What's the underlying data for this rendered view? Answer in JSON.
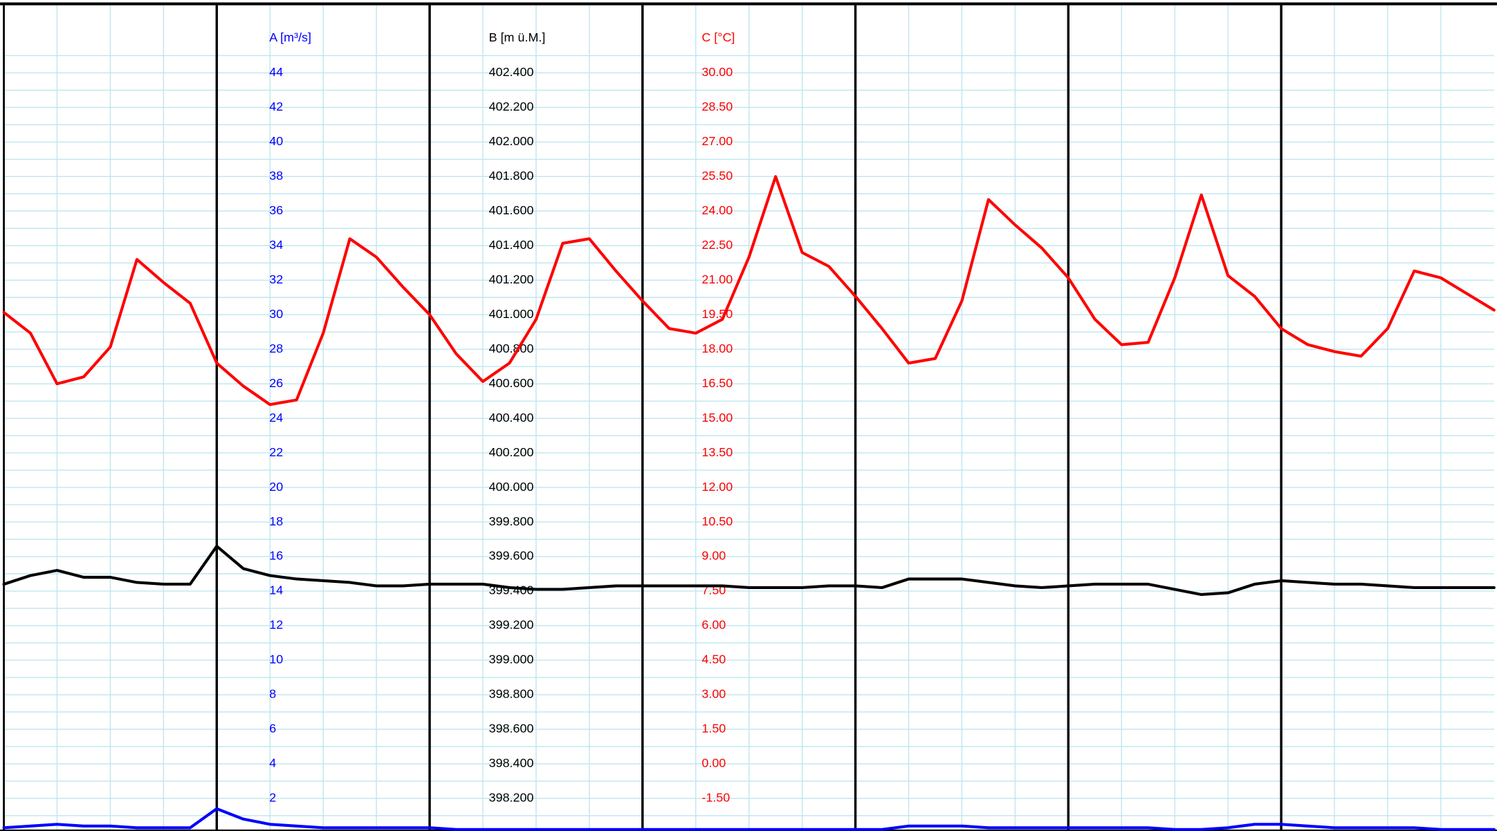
{
  "chart_data": {
    "type": "line",
    "grid": true,
    "axes": [
      {
        "label": "A [m³/s]",
        "color": "#0000ff",
        "ylim": [
          0,
          48
        ],
        "yticks": [
          2,
          4,
          6,
          8,
          10,
          12,
          14,
          16,
          18,
          20,
          22,
          24,
          26,
          28,
          30,
          32,
          34,
          36,
          38,
          40,
          42,
          44
        ]
      },
      {
        "label": "B [m ü.M.]",
        "color": "#000000",
        "ylim": [
          398.0,
          402.8
        ],
        "yticks": [
          {
            "value": 398.2,
            "label": "398.200"
          },
          {
            "value": 398.4,
            "label": "398.400"
          },
          {
            "value": 398.6,
            "label": "398.600"
          },
          {
            "value": 398.8,
            "label": "398.800"
          },
          {
            "value": 399.0,
            "label": "399.000"
          },
          {
            "value": 399.2,
            "label": "399.200"
          },
          {
            "value": 399.4,
            "label": "399.400"
          },
          {
            "value": 399.6,
            "label": "399.600"
          },
          {
            "value": 399.8,
            "label": "399.800"
          },
          {
            "value": 400.0,
            "label": "400.000"
          },
          {
            "value": 400.2,
            "label": "400.200"
          },
          {
            "value": 400.4,
            "label": "400.400"
          },
          {
            "value": 400.6,
            "label": "400.600"
          },
          {
            "value": 400.8,
            "label": "400.800"
          },
          {
            "value": 401.0,
            "label": "401.000"
          },
          {
            "value": 401.2,
            "label": "401.200"
          },
          {
            "value": 401.4,
            "label": "401.400"
          },
          {
            "value": 401.6,
            "label": "401.600"
          },
          {
            "value": 401.8,
            "label": "401.800"
          },
          {
            "value": 402.0,
            "label": "402.000"
          },
          {
            "value": 402.2,
            "label": "402.200"
          },
          {
            "value": 402.4,
            "label": "402.400"
          }
        ]
      },
      {
        "label": "C [°C]",
        "color": "#ff0000",
        "ylim": [
          -3,
          33
        ],
        "yticks": [
          {
            "value": -1.5,
            "label": "-1.50"
          },
          {
            "value": 0,
            "label": "0.00"
          },
          {
            "value": 1.5,
            "label": "1.50"
          },
          {
            "value": 3,
            "label": "3.00"
          },
          {
            "value": 4.5,
            "label": "4.50"
          },
          {
            "value": 6,
            "label": "6.00"
          },
          {
            "value": 7.5,
            "label": "7.50"
          },
          {
            "value": 9,
            "label": "9.00"
          },
          {
            "value": 10.5,
            "label": "10.50"
          },
          {
            "value": 12,
            "label": "12.00"
          },
          {
            "value": 13.5,
            "label": "13.50"
          },
          {
            "value": 15,
            "label": "15.00"
          },
          {
            "value": 16.5,
            "label": "16.50"
          },
          {
            "value": 18,
            "label": "18.00"
          },
          {
            "value": 19.5,
            "label": "19.50"
          },
          {
            "value": 21,
            "label": "21.00"
          },
          {
            "value": 22.5,
            "label": "22.50"
          },
          {
            "value": 24,
            "label": "24.00"
          },
          {
            "value": 25.5,
            "label": "25.50"
          },
          {
            "value": 27,
            "label": "27.00"
          },
          {
            "value": 28.5,
            "label": "28.50"
          },
          {
            "value": 30,
            "label": "30.00"
          }
        ]
      }
    ],
    "series": [
      {
        "axis": 0,
        "color": "#0000ff",
        "values": [
          0.3,
          0.4,
          0.5,
          0.4,
          0.4,
          0.3,
          0.3,
          0.3,
          1.4,
          0.8,
          0.5,
          0.4,
          0.3,
          0.3,
          0.3,
          0.3,
          0.3,
          0.2,
          0.2,
          0.2,
          0.2,
          0.2,
          0.2,
          0.2,
          0.2,
          0.2,
          0.2,
          0.2,
          0.2,
          0.2,
          0.2,
          0.2,
          0.2,
          0.2,
          0.4,
          0.4,
          0.4,
          0.3,
          0.3,
          0.3,
          0.3,
          0.3,
          0.3,
          0.3,
          0.2,
          0.2,
          0.3,
          0.5,
          0.5,
          0.4,
          0.3,
          0.3,
          0.3,
          0.3,
          0.2,
          0.2,
          0.2
        ]
      },
      {
        "axis": 1,
        "color": "#000000",
        "values": [
          399.44,
          399.49,
          399.52,
          399.48,
          399.48,
          399.45,
          399.44,
          399.44,
          399.66,
          399.53,
          399.49,
          399.47,
          399.46,
          399.45,
          399.43,
          399.43,
          399.44,
          399.44,
          399.44,
          399.42,
          399.41,
          399.41,
          399.42,
          399.43,
          399.43,
          399.43,
          399.43,
          399.43,
          399.42,
          399.42,
          399.42,
          399.43,
          399.43,
          399.42,
          399.47,
          399.47,
          399.47,
          399.45,
          399.43,
          399.42,
          399.43,
          399.44,
          399.44,
          399.44,
          399.41,
          399.38,
          399.39,
          399.44,
          399.46,
          399.45,
          399.44,
          399.44,
          399.43,
          399.42,
          399.42,
          399.42,
          399.42
        ]
      },
      {
        "axis": 2,
        "color": "#ff0000",
        "values": [
          19.6,
          18.7,
          16.5,
          16.8,
          18.1,
          21.9,
          20.9,
          20.0,
          17.4,
          16.4,
          15.6,
          15.8,
          18.7,
          22.8,
          22.0,
          20.7,
          19.5,
          17.8,
          16.6,
          17.4,
          19.3,
          22.6,
          22.8,
          21.4,
          20.1,
          18.9,
          18.7,
          19.3,
          22.0,
          25.5,
          22.2,
          21.6,
          20.3,
          18.9,
          17.4,
          17.6,
          20.1,
          24.5,
          23.4,
          22.4,
          21.1,
          19.3,
          18.2,
          18.3,
          21.1,
          24.7,
          21.2,
          20.3,
          18.9,
          18.2,
          17.9,
          17.7,
          18.9,
          21.4,
          21.1,
          20.4,
          19.7
        ]
      }
    ]
  }
}
